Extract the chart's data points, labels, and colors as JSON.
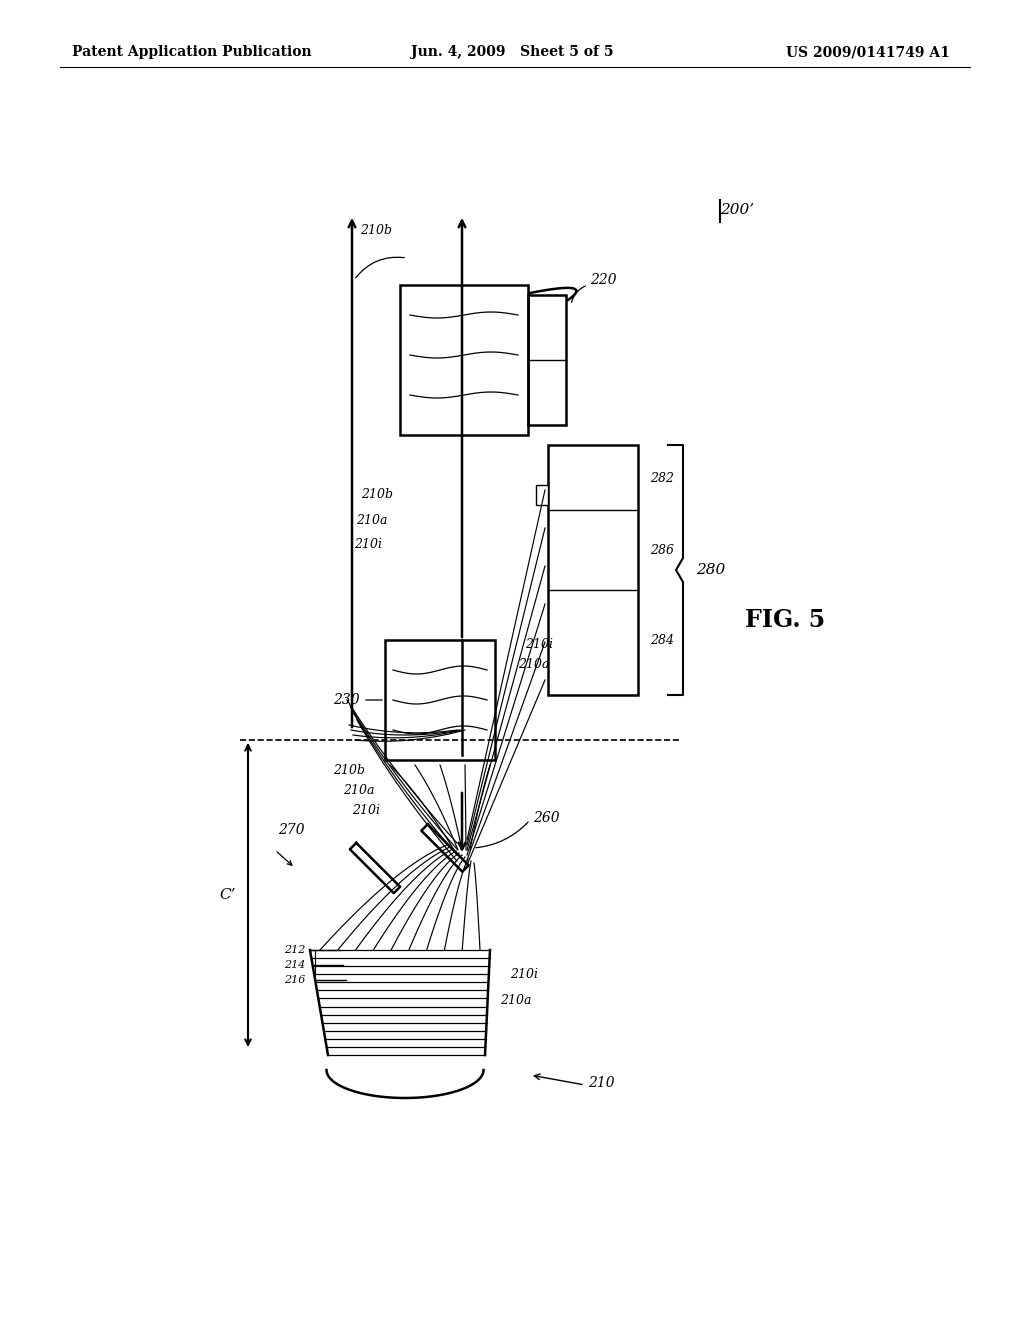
{
  "bg_color": "#ffffff",
  "header_left": "Patent Application Publication",
  "header_mid": "Jun. 4, 2009   Sheet 5 of 5",
  "header_right": "US 2009/0141749 A1",
  "fig_label": "FIG. 5",
  "ref_200prime": "200’",
  "labels": {
    "210": "210",
    "210a": "210a",
    "210b": "210b",
    "210i": "210i",
    "212": "212",
    "214": "214",
    "216": "216",
    "220": "220",
    "230": "230",
    "260": "260",
    "270": "270",
    "280": "280",
    "282": "282",
    "284": "284",
    "286": "286",
    "C_prime": "C’"
  }
}
